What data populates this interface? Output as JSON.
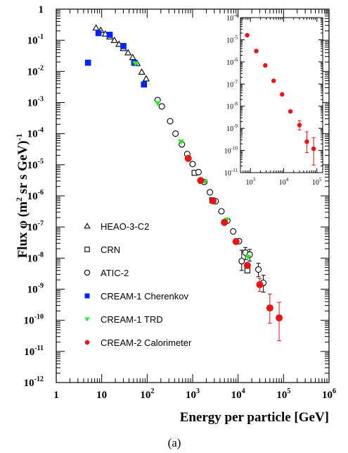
{
  "chart_data": {
    "type": "scatter",
    "xlabel": "Energy per particle [GeV]",
    "ylabel_main": "Flux φ (m",
    "ylabel_sup1": "2",
    "ylabel_rest": " sr s GeV)",
    "ylabel_sup2": "-1",
    "caption": "(a)",
    "x_scale": "log",
    "y_scale": "log",
    "xlim": [
      1,
      1000000
    ],
    "ylim": [
      1e-12,
      1
    ],
    "x_ticks": [
      {
        "base": "1",
        "exp": ""
      },
      {
        "base": "10",
        "exp": ""
      },
      {
        "base": "10",
        "exp": "2"
      },
      {
        "base": "10",
        "exp": "3"
      },
      {
        "base": "10",
        "exp": "4"
      },
      {
        "base": "10",
        "exp": "5"
      },
      {
        "base": "10",
        "exp": "6"
      }
    ],
    "y_ticks": [
      {
        "base": "10",
        "exp": "-12"
      },
      {
        "base": "10",
        "exp": "-11"
      },
      {
        "base": "10",
        "exp": "-10"
      },
      {
        "base": "10",
        "exp": "-9"
      },
      {
        "base": "10",
        "exp": "-8"
      },
      {
        "base": "10",
        "exp": "-7"
      },
      {
        "base": "10",
        "exp": "-6"
      },
      {
        "base": "10",
        "exp": "-5"
      },
      {
        "base": "10",
        "exp": "-4"
      },
      {
        "base": "10",
        "exp": "-3"
      },
      {
        "base": "10",
        "exp": "-2"
      },
      {
        "base": "10",
        "exp": "-1"
      },
      {
        "base": "1",
        "exp": ""
      }
    ],
    "legend_position": "lower-left",
    "series": [
      {
        "name": "HEAO-3-C2",
        "marker": "open-triangle",
        "color": "#000000",
        "points": [
          [
            7.5,
            0.25
          ],
          [
            9.5,
            0.21
          ],
          [
            12,
            0.16
          ],
          [
            15,
            0.13
          ],
          [
            19,
            0.1
          ],
          [
            24,
            0.075
          ],
          [
            30,
            0.055
          ],
          [
            38,
            0.04
          ],
          [
            48,
            0.028
          ],
          [
            60,
            0.018
          ],
          [
            76,
            0.0095
          ],
          [
            95,
            0.0058
          ]
        ]
      },
      {
        "name": "CRN",
        "marker": "open-square",
        "color": "#000000",
        "points": [
          [
            1100,
            5.5e-06
          ],
          [
            2700,
            7.2e-07
          ],
          [
            16000,
            4e-09
          ]
        ]
      },
      {
        "name": "ATIC-2",
        "marker": "open-circle",
        "color": "#000000",
        "points": [
          [
            170,
            0.0012
          ],
          [
            210,
            0.00075
          ],
          [
            320,
            0.00025
          ],
          [
            420,
            0.0001
          ],
          [
            580,
            4.5e-05
          ],
          [
            760,
            2.2e-05
          ],
          [
            1000,
            1.05e-05
          ],
          [
            1350,
            5.8e-06
          ],
          [
            1800,
            2.8e-06
          ],
          [
            2400,
            1.3e-06
          ],
          [
            3200,
            6.7e-07
          ],
          [
            4300,
            3.2e-07
          ],
          [
            5800,
            1.6e-07
          ],
          [
            7800,
            7.2e-08
          ],
          [
            10500,
            3.5e-08
          ],
          [
            12000,
            8e-09
          ],
          [
            14500,
            1.5e-08
          ],
          [
            18000,
            1.3e-08
          ],
          [
            28000,
            4.3e-09
          ],
          [
            36000,
            1.6e-09
          ]
        ],
        "errors": [
          [
            12000,
            4e-09,
            1.8e-08
          ],
          [
            14500,
            9e-09,
            2.2e-08
          ],
          [
            18000,
            8e-09,
            1.9e-08
          ],
          [
            28000,
            2.5e-09,
            6.8e-09
          ],
          [
            36000,
            8e-10,
            2.8e-09
          ]
        ]
      },
      {
        "name": "CREAM-1 Cherenkov",
        "marker": "filled-square",
        "color": "#0022ff",
        "points": [
          [
            5,
            0.019
          ],
          [
            8.5,
            0.17
          ],
          [
            15,
            0.15
          ],
          [
            30,
            0.065
          ],
          [
            52,
            0.019
          ],
          [
            85,
            0.0038
          ]
        ]
      },
      {
        "name": "CREAM-1 TRD",
        "marker": "filled-down-triangle",
        "color": "#22ee22",
        "points": [
          [
            55,
            0.018
          ],
          [
            170,
            0.00095
          ],
          [
            560,
            5.5e-05
          ],
          [
            1850,
            2.9e-06
          ],
          [
            5600,
            1.7e-07
          ],
          [
            16500,
            1.1e-08
          ]
        ]
      },
      {
        "name": "CREAM-2 Calorimeter",
        "marker": "filled-circle",
        "color": "#ee1111",
        "points": [
          [
            800,
            1.6e-05
          ],
          [
            1500,
            3.1e-06
          ],
          [
            2800,
            6.9e-07
          ],
          [
            5000,
            1.4e-07
          ],
          [
            9000,
            3.4e-08
          ],
          [
            16000,
            5.8e-09
          ],
          [
            30000,
            1.4e-09
          ],
          [
            50000,
            2.5e-10
          ],
          [
            80000,
            1.2e-10
          ]
        ],
        "errors": [
          [
            30000,
            8.5e-10,
            2.2e-09
          ],
          [
            50000,
            8e-11,
            7e-10
          ],
          [
            80000,
            2.2e-11,
            3.8e-10
          ]
        ]
      }
    ],
    "inset": {
      "xlim": [
        500,
        150000
      ],
      "ylim": [
        1e-11,
        0.0001
      ],
      "x_ticks": [
        {
          "base": "10",
          "exp": "3"
        },
        {
          "base": "10",
          "exp": "4"
        },
        {
          "base": "10",
          "exp": "5"
        }
      ],
      "y_ticks": [
        {
          "base": "10",
          "exp": "-11"
        },
        {
          "base": "10",
          "exp": "-10"
        },
        {
          "base": "10",
          "exp": "-9"
        },
        {
          "base": "10",
          "exp": "-8"
        },
        {
          "base": "10",
          "exp": "-7"
        },
        {
          "base": "10",
          "exp": "-6"
        },
        {
          "base": "10",
          "exp": "-5"
        },
        {
          "base": "10",
          "exp": "-4"
        }
      ],
      "series_ref": "CREAM-2 Calorimeter"
    }
  }
}
